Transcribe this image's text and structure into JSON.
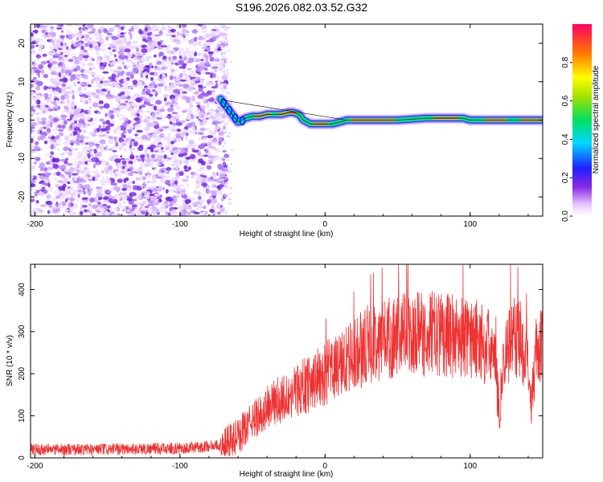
{
  "title": "S196.2026.082.03.52.G32",
  "chart_data": [
    {
      "type": "heatmap",
      "name": "spectrogram",
      "xlabel": "Height of straight line (km)",
      "ylabel": "Frequency (Hz)",
      "xlim": [
        -203,
        150
      ],
      "ylim": [
        -25,
        25
      ],
      "xticks": [
        -200,
        -100,
        0,
        100
      ],
      "xtick_labels": [
        "-200",
        "-100",
        "0",
        "100"
      ],
      "yticks": [
        -20,
        -10,
        0,
        10,
        20
      ],
      "ytick_labels": [
        "-20",
        "-10",
        "0",
        "10",
        "20"
      ],
      "noise_region_x": [
        -203,
        -72
      ],
      "signal_track": {
        "x": [
          -72,
          -68,
          -64,
          -60,
          -55,
          -50,
          -45,
          -40,
          -35,
          -30,
          -25,
          -22,
          -18,
          -15,
          -10,
          -5,
          0,
          5,
          10,
          15,
          30,
          50,
          70,
          80,
          90,
          95,
          100,
          120,
          140,
          150
        ],
        "freq": [
          5.5,
          3.5,
          1.5,
          -0.5,
          0.5,
          1.0,
          1.0,
          1.5,
          1.5,
          1.5,
          2.0,
          2.0,
          1.5,
          0.0,
          -1.0,
          -1.0,
          -1.0,
          -1.0,
          -0.5,
          0.0,
          0.0,
          0.0,
          0.5,
          0.5,
          0.5,
          0.5,
          0.0,
          0.0,
          0.0,
          0.0
        ]
      },
      "colorbar": {
        "label": "Normalized spectral amplitude",
        "range": [
          0,
          1
        ],
        "ticks": [
          0.0,
          0.2,
          0.4,
          0.6,
          0.8
        ],
        "tick_labels": [
          "0.0",
          "0.2",
          "0.4",
          "0.6",
          "0.8"
        ]
      }
    },
    {
      "type": "line",
      "name": "snr",
      "xlabel": "Height of straight line (km)",
      "ylabel": "SNR (10 * v/v)",
      "xlim": [
        -203,
        150
      ],
      "ylim": [
        0,
        460
      ],
      "xticks": [
        -200,
        -100,
        0,
        100
      ],
      "xtick_labels": [
        "-200",
        "-100",
        "0",
        "100"
      ],
      "yticks": [
        0,
        100,
        200,
        300,
        400
      ],
      "ytick_labels": [
        "0",
        "100",
        "200",
        "300",
        "400"
      ],
      "color": "#ee3333",
      "series": [
        {
          "name": "SNR",
          "x": [
            -203,
            -180,
            -150,
            -120,
            -100,
            -90,
            -80,
            -72,
            -65,
            -60,
            -55,
            -50,
            -45,
            -40,
            -30,
            -20,
            -10,
            0,
            10,
            20,
            30,
            40,
            50,
            60,
            70,
            80,
            90,
            100,
            105,
            110,
            115,
            118,
            120,
            122,
            125,
            128,
            130,
            135,
            140,
            142,
            145,
            150
          ],
          "y": [
            20,
            20,
            20,
            22,
            22,
            24,
            28,
            30,
            40,
            50,
            70,
            90,
            100,
            120,
            140,
            160,
            180,
            200,
            220,
            245,
            270,
            285,
            290,
            295,
            295,
            295,
            290,
            285,
            280,
            270,
            255,
            200,
            100,
            200,
            250,
            290,
            290,
            280,
            230,
            130,
            240,
            270
          ]
        }
      ]
    }
  ]
}
